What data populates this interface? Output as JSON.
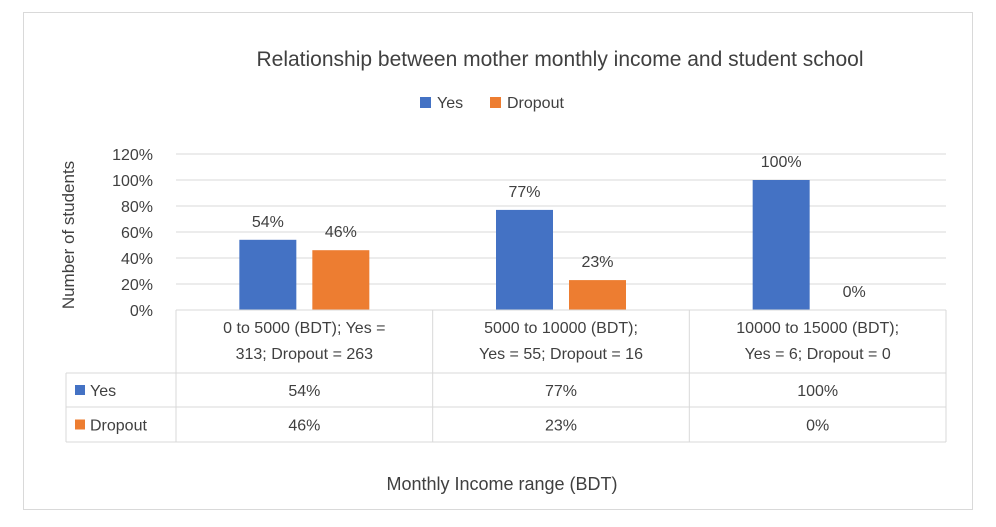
{
  "chart_data": {
    "type": "bar",
    "title": "Relationship between mother monthly income and student school",
    "xlabel": "Monthly Income range (BDT)",
    "ylabel": "Number of students",
    "categories": [
      [
        "0 to 5000 (BDT); Yes =",
        "313; Dropout = 263"
      ],
      [
        "5000 to 10000 (BDT);",
        "Yes = 55; Dropout = 16"
      ],
      [
        "10000 to 15000 (BDT);",
        "Yes = 6; Dropout = 0"
      ]
    ],
    "series": [
      {
        "name": "Yes",
        "values": [
          54,
          77,
          100
        ],
        "labels": [
          "54%",
          "77%",
          "100%"
        ],
        "color": "#4472c4"
      },
      {
        "name": "Dropout",
        "values": [
          46,
          23,
          0
        ],
        "labels": [
          "46%",
          "23%",
          "0%"
        ],
        "color": "#ed7d31"
      }
    ],
    "yticks": [
      "0%",
      "20%",
      "40%",
      "60%",
      "80%",
      "100%",
      "120%"
    ],
    "ylim": [
      0,
      120
    ],
    "grid": true,
    "legend": "top",
    "data_table": true
  }
}
